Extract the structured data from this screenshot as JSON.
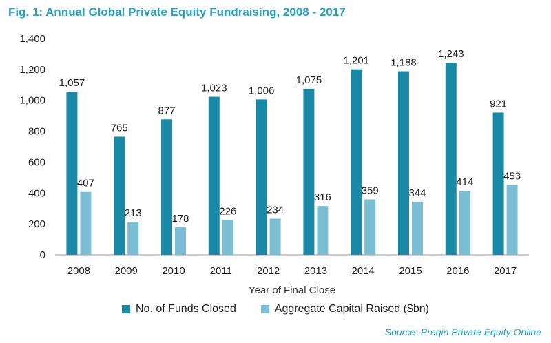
{
  "chart_data": {
    "type": "bar",
    "title": "Fig. 1: Annual Global Private Equity Fundraising, 2008 - 2017",
    "xlabel": "Year of Final Close",
    "ylabel": "",
    "ylim": [
      0,
      1400
    ],
    "yticks": [
      0,
      200,
      400,
      600,
      800,
      1000,
      1200,
      1400
    ],
    "ytick_labels": [
      "0",
      "200",
      "400",
      "600",
      "800",
      "1,000",
      "1,200",
      "1,400"
    ],
    "categories": [
      "2008",
      "2009",
      "2010",
      "2011",
      "2012",
      "2013",
      "2014",
      "2015",
      "2016",
      "2017"
    ],
    "series": [
      {
        "name": "No. of Funds Closed",
        "color": "#1a89a6",
        "values": [
          1057,
          765,
          877,
          1023,
          1006,
          1075,
          1201,
          1188,
          1243,
          921
        ],
        "labels": [
          "1,057",
          "765",
          "877",
          "1,023",
          "1,006",
          "1,075",
          "1,201",
          "1,188",
          "1,243",
          "921"
        ]
      },
      {
        "name": "Aggregate Capital Raised ($bn)",
        "color": "#7bbdd3",
        "values": [
          407,
          213,
          178,
          226,
          234,
          316,
          359,
          344,
          414,
          453
        ],
        "labels": [
          "407",
          "213",
          "178",
          "226",
          "234",
          "316",
          "359",
          "344",
          "414",
          "453"
        ]
      }
    ],
    "legend": "bottom-center"
  },
  "source": "Source: Preqin Private Equity Online"
}
